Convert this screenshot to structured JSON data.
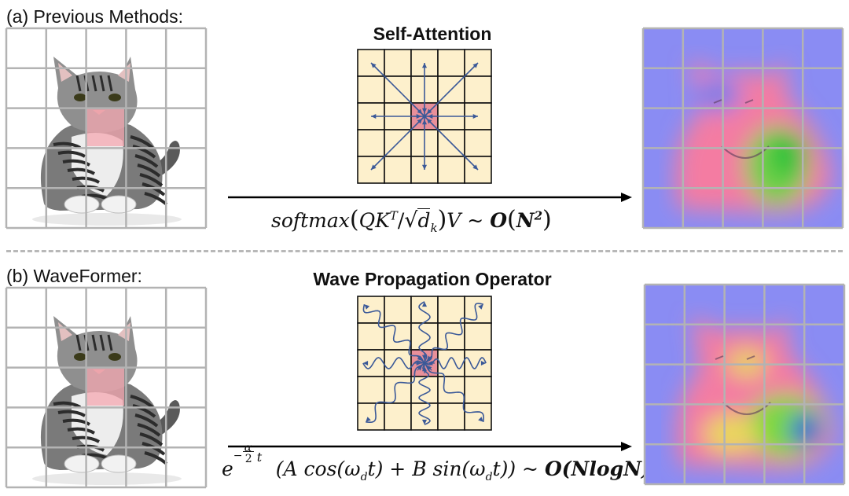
{
  "panel_a": {
    "label": "(a) Previous Methods:",
    "operator_title": "Self-Attention",
    "formula": {
      "fn": "softmax",
      "arg": "QK",
      "sup": "T",
      "denom": "d",
      "denom_sub": "k",
      "after": "V ~ ",
      "complexity_o": "O",
      "complexity_n": "N",
      "complexity_exp": "2"
    }
  },
  "panel_b": {
    "label": "(b) WaveFormer:",
    "operator_title": "Wave Propagation Operator",
    "formula": {
      "base": "e",
      "exp_minus": "−",
      "exp_alpha": "α",
      "exp_two": "2",
      "exp_t": "t",
      "body_a": "(A cos(ω",
      "sub_d1": "d",
      "body_b": "t) + B sin(ω",
      "sub_d2": "d",
      "body_c": "t)) ~ ",
      "complexity": "O(NlogN)"
    }
  },
  "colors": {
    "grid_line": "#b3b3b3",
    "cell_fill": "#fdf0cc",
    "center_cell": "#e8909a",
    "arrow": "#3b5998",
    "heat_background": "#8a8cf3",
    "divider": "#b8b8b8"
  },
  "icons": [
    "cat-image-icon",
    "heatmap-icon",
    "attention-grid-icon",
    "wave-grid-icon",
    "arrow-right-icon"
  ]
}
